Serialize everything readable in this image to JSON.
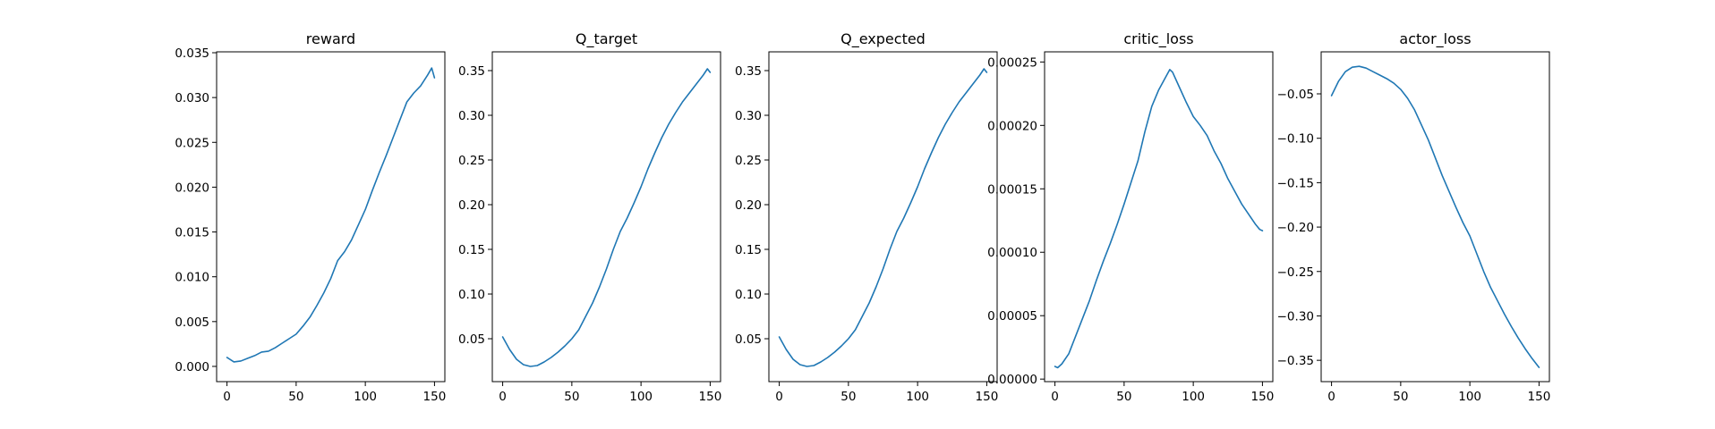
{
  "figure": {
    "line_color": "#1f77b4"
  },
  "chart_data": [
    {
      "type": "line",
      "title": "reward",
      "xlabel": "",
      "ylabel": "",
      "xlim": [
        -7.5,
        157.5
      ],
      "ylim": [
        -0.0017,
        0.0351
      ],
      "x_ticks": [
        0,
        50,
        100,
        150
      ],
      "x_tick_labels": [
        "0",
        "50",
        "100",
        "150"
      ],
      "y_ticks": [
        0.0,
        0.005,
        0.01,
        0.015,
        0.02,
        0.025,
        0.03,
        0.035
      ],
      "y_tick_labels": [
        "0.000",
        "0.005",
        "0.010",
        "0.015",
        "0.020",
        "0.025",
        "0.030",
        "0.035"
      ],
      "grid": false,
      "series": [
        {
          "x": [
            0,
            5,
            10,
            15,
            20,
            25,
            30,
            35,
            40,
            45,
            50,
            55,
            60,
            65,
            70,
            75,
            80,
            85,
            90,
            95,
            100,
            105,
            110,
            115,
            120,
            125,
            130,
            135,
            140,
            145,
            148,
            150
          ],
          "y": [
            0.001,
            0.0005,
            0.0006,
            0.0009,
            0.0012,
            0.0016,
            0.0017,
            0.0021,
            0.0026,
            0.0031,
            0.0036,
            0.0045,
            0.0055,
            0.0068,
            0.0082,
            0.0098,
            0.0118,
            0.0128,
            0.0141,
            0.0158,
            0.0175,
            0.0196,
            0.0216,
            0.0235,
            0.0255,
            0.0275,
            0.0295,
            0.0305,
            0.0313,
            0.0325,
            0.0333,
            0.0322
          ]
        }
      ]
    },
    {
      "type": "line",
      "title": "Q_target",
      "xlabel": "",
      "ylabel": "",
      "xlim": [
        -7.5,
        157.5
      ],
      "ylim": [
        0.002,
        0.371
      ],
      "x_ticks": [
        0,
        50,
        100,
        150
      ],
      "x_tick_labels": [
        "0",
        "50",
        "100",
        "150"
      ],
      "y_ticks": [
        0.05,
        0.1,
        0.15,
        0.2,
        0.25,
        0.3,
        0.35
      ],
      "y_tick_labels": [
        "0.05",
        "0.10",
        "0.15",
        "0.20",
        "0.25",
        "0.30",
        "0.35"
      ],
      "grid": false,
      "series": [
        {
          "x": [
            0,
            5,
            10,
            15,
            20,
            25,
            30,
            35,
            40,
            45,
            50,
            55,
            60,
            65,
            70,
            75,
            80,
            85,
            90,
            95,
            100,
            105,
            110,
            115,
            120,
            125,
            130,
            135,
            140,
            145,
            148,
            150
          ],
          "y": [
            0.052,
            0.038,
            0.027,
            0.021,
            0.019,
            0.02,
            0.024,
            0.029,
            0.035,
            0.042,
            0.05,
            0.06,
            0.075,
            0.09,
            0.108,
            0.128,
            0.15,
            0.17,
            0.185,
            0.202,
            0.22,
            0.24,
            0.258,
            0.275,
            0.29,
            0.303,
            0.315,
            0.325,
            0.335,
            0.345,
            0.352,
            0.348
          ]
        }
      ]
    },
    {
      "type": "line",
      "title": "Q_expected",
      "xlabel": "",
      "ylabel": "",
      "xlim": [
        -7.5,
        157.5
      ],
      "ylim": [
        0.002,
        0.371
      ],
      "x_ticks": [
        0,
        50,
        100,
        150
      ],
      "x_tick_labels": [
        "0",
        "50",
        "100",
        "150"
      ],
      "y_ticks": [
        0.05,
        0.1,
        0.15,
        0.2,
        0.25,
        0.3,
        0.35
      ],
      "y_tick_labels": [
        "0.05",
        "0.10",
        "0.15",
        "0.20",
        "0.25",
        "0.30",
        "0.35"
      ],
      "grid": false,
      "series": [
        {
          "x": [
            0,
            5,
            10,
            15,
            20,
            25,
            30,
            35,
            40,
            45,
            50,
            55,
            60,
            65,
            70,
            75,
            80,
            85,
            90,
            95,
            100,
            105,
            110,
            115,
            120,
            125,
            130,
            135,
            140,
            145,
            148,
            150
          ],
          "y": [
            0.052,
            0.038,
            0.027,
            0.021,
            0.019,
            0.02,
            0.024,
            0.029,
            0.035,
            0.042,
            0.05,
            0.06,
            0.075,
            0.09,
            0.108,
            0.128,
            0.15,
            0.17,
            0.185,
            0.202,
            0.22,
            0.24,
            0.258,
            0.275,
            0.29,
            0.303,
            0.315,
            0.325,
            0.335,
            0.345,
            0.352,
            0.348
          ]
        }
      ]
    },
    {
      "type": "line",
      "title": "critic_loss",
      "xlabel": "",
      "ylabel": "",
      "xlim": [
        -7.5,
        157.5
      ],
      "ylim": [
        -2e-06,
        0.000258
      ],
      "x_ticks": [
        0,
        50,
        100,
        150
      ],
      "x_tick_labels": [
        "0",
        "50",
        "100",
        "150"
      ],
      "y_ticks": [
        0.0,
        5e-05,
        0.0001,
        0.00015,
        0.0002,
        0.00025
      ],
      "y_tick_labels": [
        "0.00000",
        "0.00005",
        "0.00010",
        "0.00015",
        "0.00020",
        "0.00025"
      ],
      "grid": false,
      "series": [
        {
          "x": [
            0,
            2,
            5,
            10,
            15,
            20,
            25,
            30,
            35,
            40,
            45,
            50,
            55,
            60,
            65,
            70,
            75,
            80,
            83,
            85,
            90,
            95,
            100,
            105,
            110,
            115,
            120,
            125,
            130,
            135,
            140,
            145,
            148,
            150
          ],
          "y": [
            1e-05,
            9e-06,
            1.2e-05,
            2e-05,
            3.4e-05,
            4.8e-05,
            6.2e-05,
            7.8e-05,
            9.3e-05,
            0.000107,
            0.000122,
            0.000138,
            0.000155,
            0.000172,
            0.000195,
            0.000215,
            0.000228,
            0.000238,
            0.000244,
            0.000242,
            0.00023,
            0.000218,
            0.000207,
            0.0002,
            0.000192,
            0.00018,
            0.00017,
            0.000158,
            0.000148,
            0.000138,
            0.00013,
            0.000122,
            0.000118,
            0.000117
          ]
        }
      ]
    },
    {
      "type": "line",
      "title": "actor_loss",
      "xlabel": "",
      "ylabel": "",
      "xlim": [
        -7.5,
        157.5
      ],
      "ylim": [
        -0.374,
        -0.0027
      ],
      "x_ticks": [
        0,
        50,
        100,
        150
      ],
      "x_tick_labels": [
        "0",
        "50",
        "100",
        "150"
      ],
      "y_ticks": [
        -0.35,
        -0.3,
        -0.25,
        -0.2,
        -0.15,
        -0.1,
        -0.05
      ],
      "y_tick_labels": [
        "−0.35",
        "−0.30",
        "−0.25",
        "−0.20",
        "−0.15",
        "−0.10",
        "−0.05"
      ],
      "grid": false,
      "series": [
        {
          "x": [
            0,
            5,
            10,
            15,
            20,
            25,
            30,
            35,
            40,
            45,
            50,
            55,
            60,
            65,
            70,
            75,
            80,
            85,
            90,
            95,
            100,
            105,
            110,
            115,
            120,
            125,
            130,
            135,
            140,
            145,
            150
          ],
          "y": [
            -0.052,
            -0.036,
            -0.025,
            -0.02,
            -0.019,
            -0.021,
            -0.025,
            -0.029,
            -0.033,
            -0.038,
            -0.045,
            -0.055,
            -0.068,
            -0.085,
            -0.102,
            -0.122,
            -0.142,
            -0.16,
            -0.178,
            -0.195,
            -0.21,
            -0.23,
            -0.25,
            -0.268,
            -0.283,
            -0.298,
            -0.312,
            -0.325,
            -0.337,
            -0.348,
            -0.358
          ]
        }
      ]
    }
  ]
}
